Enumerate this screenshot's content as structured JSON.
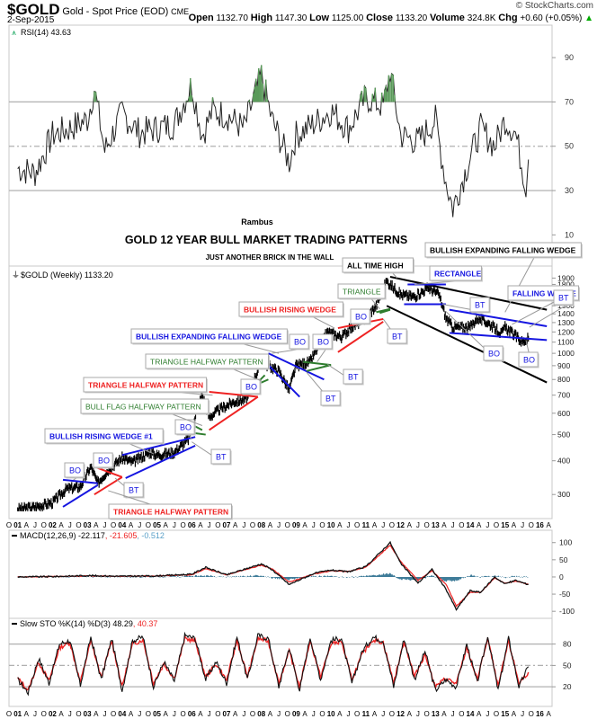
{
  "header": {
    "symbol": "$GOLD",
    "description": "Gold - Spot Price (EOD)",
    "exchange": "CME",
    "date": "2-Sep-2015",
    "watermark": "© StockCharts.com",
    "open_label": "Open",
    "open": "1132.70",
    "high_label": "High",
    "high": "1147.30",
    "low_label": "Low",
    "low": "1125.00",
    "close_label": "Close",
    "close": "1133.20",
    "volume_label": "Volume",
    "volume": "324.8K",
    "chg_label": "Chg",
    "chg": "+0.60 (+0.05%)",
    "chg_arrow": "▲"
  },
  "colors": {
    "price": "#000000",
    "blue": "#1515e0",
    "red": "#ee2222",
    "green": "#2e7d2e",
    "macd_signal": "#ee2222",
    "macd_hist": "#2a6e8e",
    "grid": "#b0b0b0",
    "rsi_fill": "#5a9a5a"
  },
  "chart_data": [
    {
      "type": "line",
      "panel": "rsi",
      "title": "RSI(14) 43.63",
      "ylim": [
        0,
        100
      ],
      "yticks": [
        10,
        30,
        50,
        70,
        90
      ],
      "reference_lines": [
        30,
        50,
        70
      ],
      "x": [
        2001.0,
        2001.5,
        2002.0,
        2002.5,
        2003.0,
        2003.2,
        2003.5,
        2004.0,
        2004.5,
        2005.0,
        2005.5,
        2006.0,
        2006.3,
        2006.6,
        2007.0,
        2007.5,
        2008.0,
        2008.3,
        2008.8,
        2009.0,
        2009.5,
        2010.0,
        2010.5,
        2011.0,
        2011.5,
        2011.7,
        2012.0,
        2012.5,
        2013.0,
        2013.3,
        2013.5,
        2014.0,
        2014.3,
        2014.7,
        2015.0,
        2015.3,
        2015.6,
        2015.67
      ],
      "values": [
        40,
        38,
        55,
        58,
        62,
        76,
        48,
        65,
        56,
        58,
        60,
        78,
        55,
        66,
        64,
        58,
        82,
        62,
        43,
        55,
        60,
        66,
        58,
        72,
        68,
        84,
        55,
        52,
        62,
        34,
        22,
        45,
        58,
        50,
        62,
        56,
        32,
        44
      ]
    },
    {
      "type": "line",
      "panel": "price",
      "title": "$GOLD (Weekly) 1133.20",
      "scale": "log",
      "ylim": [
        250,
        1950
      ],
      "yticks": [
        300,
        400,
        500,
        600,
        700,
        800,
        900,
        1000,
        1100,
        1200,
        1300,
        1400,
        1500,
        1600,
        1700,
        1800,
        1900
      ],
      "x": [
        2001.0,
        2001.5,
        2002.0,
        2002.4,
        2002.8,
        2003.1,
        2003.3,
        2003.6,
        2004.0,
        2004.3,
        2004.8,
        2005.0,
        2005.5,
        2005.9,
        2006.3,
        2006.5,
        2006.8,
        2007.2,
        2007.6,
        2008.0,
        2008.2,
        2008.5,
        2008.8,
        2009.0,
        2009.4,
        2009.9,
        2010.3,
        2010.6,
        2011.0,
        2011.3,
        2011.6,
        2011.7,
        2012.0,
        2012.4,
        2012.8,
        2013.1,
        2013.3,
        2013.5,
        2014.0,
        2014.2,
        2014.5,
        2014.9,
        2015.0,
        2015.5,
        2015.67
      ],
      "values": [
        265,
        270,
        280,
        315,
        320,
        380,
        330,
        370,
        410,
        395,
        430,
        420,
        430,
        480,
        700,
        580,
        620,
        660,
        680,
        930,
        900,
        860,
        730,
        900,
        930,
        1200,
        1150,
        1250,
        1350,
        1500,
        1850,
        1800,
        1650,
        1620,
        1750,
        1650,
        1350,
        1250,
        1250,
        1350,
        1300,
        1180,
        1250,
        1100,
        1133
      ],
      "annotations": [
        {
          "text": "BO",
          "color": "blue"
        },
        {
          "text": "BO",
          "color": "blue"
        },
        {
          "text": "BT",
          "color": "blue"
        },
        {
          "text": "TRIANGLE HALFWAY PATTERN",
          "color": "red"
        },
        {
          "text": "BULLISH RISING WEDGE #1",
          "color": "blue"
        },
        {
          "text": "BO",
          "color": "blue"
        },
        {
          "text": "BT",
          "color": "blue"
        },
        {
          "text": "BULL FLAG HALFWAY PATTERN",
          "color": "green"
        },
        {
          "text": "TRIANGLE HALFWAY PATTERN",
          "color": "red"
        },
        {
          "text": "BO",
          "color": "blue"
        },
        {
          "text": "TRIANGLE HALFWAY PATTERN",
          "color": "green"
        },
        {
          "text": "BULLISH EXPANDING FALLING WEDGE",
          "color": "blue"
        },
        {
          "text": "BO",
          "color": "blue"
        },
        {
          "text": "BT",
          "color": "blue"
        },
        {
          "text": "BO",
          "color": "blue"
        },
        {
          "text": "BT",
          "color": "blue"
        },
        {
          "text": "BULLISH RISING WEDGE",
          "color": "red"
        },
        {
          "text": "BO",
          "color": "blue"
        },
        {
          "text": "BT",
          "color": "blue"
        },
        {
          "text": "TRIANGLE",
          "color": "green"
        },
        {
          "text": "ALL TIME HIGH",
          "color": "black"
        },
        {
          "text": "RECTANGLE",
          "color": "blue"
        },
        {
          "text": "BULLISH EXPANDING FALLING WEDGE",
          "color": "black"
        },
        {
          "text": "BT",
          "color": "blue"
        },
        {
          "text": "BO",
          "color": "blue"
        },
        {
          "text": "FALLING WEDGE",
          "color": "blue"
        },
        {
          "text": "BT",
          "color": "blue"
        },
        {
          "text": "BO",
          "color": "blue"
        }
      ]
    },
    {
      "type": "line",
      "panel": "macd",
      "title": "MACD(12,26,9)",
      "legend_values": [
        "-22.117",
        "-21.605",
        "-0.512"
      ],
      "ylim": [
        -110,
        115
      ],
      "yticks": [
        -100,
        -50,
        0,
        50,
        100
      ],
      "x": [
        2001.0,
        2002.0,
        2003.0,
        2004.0,
        2005.0,
        2006.0,
        2006.4,
        2007.0,
        2008.0,
        2008.3,
        2008.8,
        2009.5,
        2010.0,
        2010.5,
        2011.0,
        2011.7,
        2012.0,
        2012.5,
        2012.9,
        2013.3,
        2013.6,
        2014.0,
        2014.3,
        2014.7,
        2015.0,
        2015.3,
        2015.67
      ],
      "series": [
        {
          "name": "MACD",
          "values": [
            0,
            1,
            4,
            2,
            3,
            8,
            28,
            6,
            38,
            22,
            -22,
            10,
            20,
            15,
            30,
            100,
            40,
            -18,
            22,
            -35,
            -95,
            -40,
            -45,
            0,
            -20,
            -10,
            -22
          ]
        },
        {
          "name": "Signal",
          "values": [
            0,
            1,
            3,
            2,
            3,
            6,
            24,
            6,
            34,
            24,
            -15,
            8,
            18,
            16,
            28,
            92,
            45,
            -10,
            18,
            -20,
            -85,
            -45,
            -45,
            -3,
            -18,
            -12,
            -21.6
          ]
        },
        {
          "name": "Histogram",
          "values": [
            0,
            0,
            1,
            0,
            0,
            2,
            4,
            0,
            4,
            -3,
            -8,
            2,
            2,
            -1,
            2,
            10,
            -8,
            -8,
            4,
            -12,
            -10,
            5,
            0,
            3,
            -2,
            2,
            -0.5
          ]
        }
      ]
    },
    {
      "type": "line",
      "panel": "stochastic",
      "title": "Slow STO %K(14) %D(3)",
      "legend_values": [
        "48.29",
        "40.37"
      ],
      "ylim": [
        0,
        100
      ],
      "yticks": [
        20,
        50,
        80
      ],
      "reference_lines": [
        20,
        50,
        80
      ],
      "x": [
        2001.0,
        2001.3,
        2001.6,
        2001.9,
        2002.2,
        2002.5,
        2002.8,
        2003.1,
        2003.4,
        2003.7,
        2004.0,
        2004.3,
        2004.6,
        2004.9,
        2005.2,
        2005.5,
        2005.8,
        2006.1,
        2006.4,
        2006.7,
        2007.0,
        2007.3,
        2007.6,
        2007.9,
        2008.2,
        2008.5,
        2008.8,
        2009.1,
        2009.4,
        2009.7,
        2010.0,
        2010.3,
        2010.6,
        2010.9,
        2011.2,
        2011.5,
        2011.8,
        2012.1,
        2012.4,
        2012.7,
        2013.0,
        2013.3,
        2013.6,
        2013.9,
        2014.2,
        2014.5,
        2014.8,
        2015.1,
        2015.4,
        2015.67
      ],
      "series": [
        {
          "name": "%K",
          "values": [
            30,
            12,
            60,
            25,
            80,
            85,
            22,
            90,
            30,
            88,
            15,
            85,
            90,
            20,
            55,
            28,
            92,
            88,
            30,
            55,
            25,
            90,
            30,
            92,
            88,
            20,
            75,
            15,
            90,
            30,
            85,
            88,
            25,
            70,
            90,
            85,
            20,
            88,
            30,
            70,
            15,
            30,
            20,
            80,
            25,
            92,
            15,
            88,
            20,
            48.29
          ]
        },
        {
          "name": "%D",
          "values": [
            32,
            15,
            55,
            28,
            75,
            82,
            26,
            85,
            33,
            84,
            20,
            80,
            86,
            25,
            52,
            32,
            88,
            84,
            34,
            52,
            29,
            85,
            34,
            88,
            84,
            25,
            70,
            20,
            85,
            34,
            80,
            84,
            30,
            66,
            86,
            82,
            26,
            84,
            34,
            66,
            20,
            32,
            24,
            75,
            30,
            88,
            20,
            84,
            25,
            40.37
          ]
        }
      ]
    }
  ],
  "x_axis": {
    "labels": [
      "O",
      "01",
      "A",
      "J",
      "O",
      "02",
      "A",
      "J",
      "O",
      "03",
      "A",
      "J",
      "O",
      "04",
      "A",
      "J",
      "O",
      "05",
      "A",
      "J",
      "O",
      "06",
      "A",
      "J",
      "O",
      "07",
      "A",
      "J",
      "O",
      "08",
      "A",
      "J",
      "O",
      "09",
      "A",
      "J",
      "O",
      "10",
      "A",
      "J",
      "O",
      "11",
      "A",
      "J",
      "O",
      "12",
      "A",
      "J",
      "O",
      "13",
      "A",
      "J",
      "O",
      "14",
      "A",
      "J",
      "O",
      "15",
      "A",
      "J",
      "O",
      "16",
      "A"
    ]
  },
  "titles": {
    "author": "Rambus",
    "main": "GOLD 12 YEAR BULL MARKET TRADING PATTERNS",
    "subtitle": "JUST ANOTHER BRICK IN THE WALL"
  },
  "labels": {
    "rsi": "RSI(14) 43.63",
    "price": "$GOLD (Weekly) 1133.20",
    "macd_name": "MACD(12,26,9)",
    "macd_v1": "-22.117",
    "macd_v2": ", -21.605",
    "macd_v3": ", -0.512",
    "sto_name": "Slow STO %K(14) %D(3) 48.29",
    "sto_v2": ", 40.37"
  }
}
